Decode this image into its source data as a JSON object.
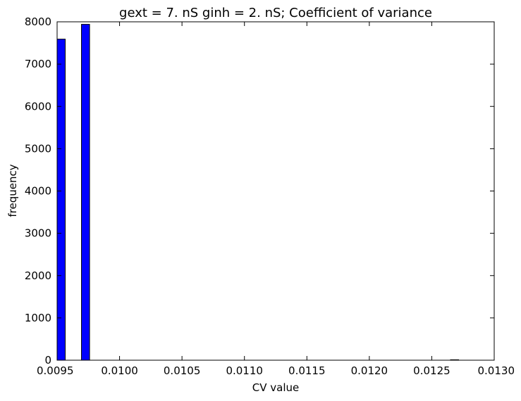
{
  "chart_data": {
    "type": "bar",
    "title": "gext = 7. nS ginh = 2. nS; Coefficient of variance",
    "xlabel": "CV value",
    "ylabel": "frequency",
    "xlim": [
      0.0095,
      0.013
    ],
    "ylim": [
      0,
      8000
    ],
    "x_ticks": [
      "0.0095",
      "0.0100",
      "0.0105",
      "0.0110",
      "0.0115",
      "0.0120",
      "0.0125",
      "0.0130"
    ],
    "y_ticks": [
      "0",
      "1000",
      "2000",
      "3000",
      "4000",
      "5000",
      "6000",
      "7000",
      "8000"
    ],
    "grid": false,
    "bar_color": "#0000ff",
    "bins": [
      {
        "start": 0.0095,
        "end": 0.009565,
        "value": 7590
      },
      {
        "start": 0.009695,
        "end": 0.00976,
        "value": 7940
      },
      {
        "start": 0.01265,
        "end": 0.012715,
        "value": 10
      }
    ]
  }
}
